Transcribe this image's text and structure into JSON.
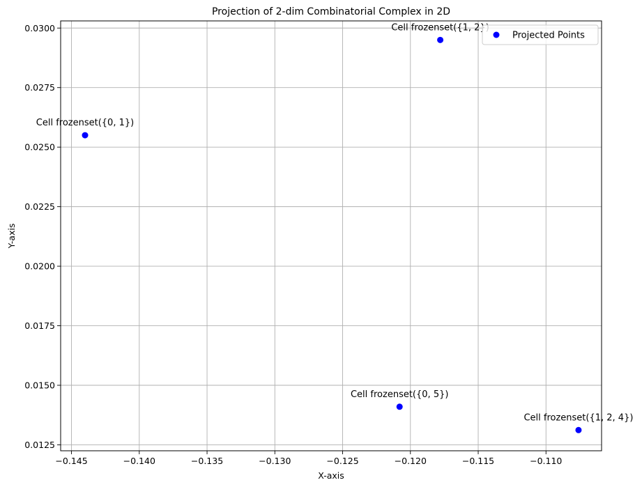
{
  "chart_data": {
    "type": "scatter",
    "title": "Projection of 2-dim Combinatorial Complex in 2D",
    "xlabel": "X-axis",
    "ylabel": "Y-axis",
    "xlim": [
      -0.1458,
      -0.1059
    ],
    "ylim": [
      0.01225,
      0.0303
    ],
    "xticks": [
      -0.145,
      -0.14,
      -0.135,
      -0.13,
      -0.125,
      -0.12,
      -0.115,
      -0.11
    ],
    "xtick_labels": [
      "−0.145",
      "−0.140",
      "−0.135",
      "−0.130",
      "−0.125",
      "−0.120",
      "−0.115",
      "−0.110"
    ],
    "yticks": [
      0.0125,
      0.015,
      0.0175,
      0.02,
      0.0225,
      0.025,
      0.0275,
      0.03
    ],
    "ytick_labels": [
      "0.0125",
      "0.0150",
      "0.0175",
      "0.0200",
      "0.0225",
      "0.0250",
      "0.0275",
      "0.0300"
    ],
    "grid": true,
    "legend_position": "top-right",
    "series": [
      {
        "name": "Projected Points",
        "color": "#0000ff",
        "points": [
          {
            "x": -0.144,
            "y": 0.0255,
            "label": "Cell frozenset({0, 1})"
          },
          {
            "x": -0.1178,
            "y": 0.0295,
            "label": "Cell frozenset({1, 2})"
          },
          {
            "x": -0.1208,
            "y": 0.0141,
            "label": "Cell frozenset({0, 5})"
          },
          {
            "x": -0.1076,
            "y": 0.01312,
            "label": "Cell frozenset({1, 2, 4})"
          }
        ]
      }
    ]
  }
}
